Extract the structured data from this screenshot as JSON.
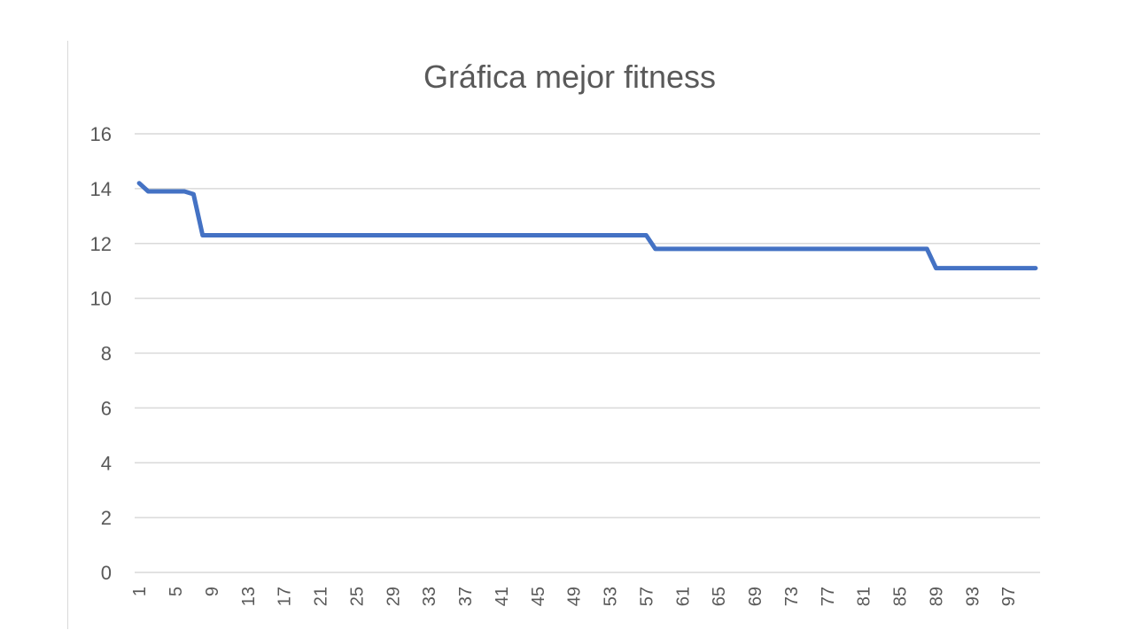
{
  "chart_data": {
    "type": "line",
    "title": "Gráfica mejor fitness",
    "xlabel": "",
    "ylabel": "",
    "ylim": [
      0,
      16
    ],
    "yticks": [
      "0",
      "2",
      "4",
      "6",
      "8",
      "10",
      "12",
      "14",
      "16"
    ],
    "xticks": [
      "1",
      "5",
      "9",
      "13",
      "17",
      "21",
      "25",
      "29",
      "33",
      "37",
      "41",
      "45",
      "49",
      "53",
      "57",
      "61",
      "65",
      "69",
      "73",
      "77",
      "81",
      "85",
      "89",
      "93",
      "97"
    ],
    "xrange": [
      1,
      100
    ],
    "grid": true,
    "legend": "none",
    "series": [
      {
        "color": "#4472c4",
        "points": [
          [
            1,
            14.2
          ],
          [
            2,
            13.9
          ],
          [
            3,
            13.9
          ],
          [
            4,
            13.9
          ],
          [
            5,
            13.9
          ],
          [
            6,
            13.9
          ],
          [
            7,
            13.8
          ],
          [
            8,
            12.3
          ],
          [
            56,
            12.3
          ],
          [
            57,
            12.3
          ],
          [
            58,
            11.8
          ],
          [
            87,
            11.8
          ],
          [
            88,
            11.8
          ],
          [
            89,
            11.1
          ],
          [
            100,
            11.1
          ]
        ]
      }
    ]
  }
}
